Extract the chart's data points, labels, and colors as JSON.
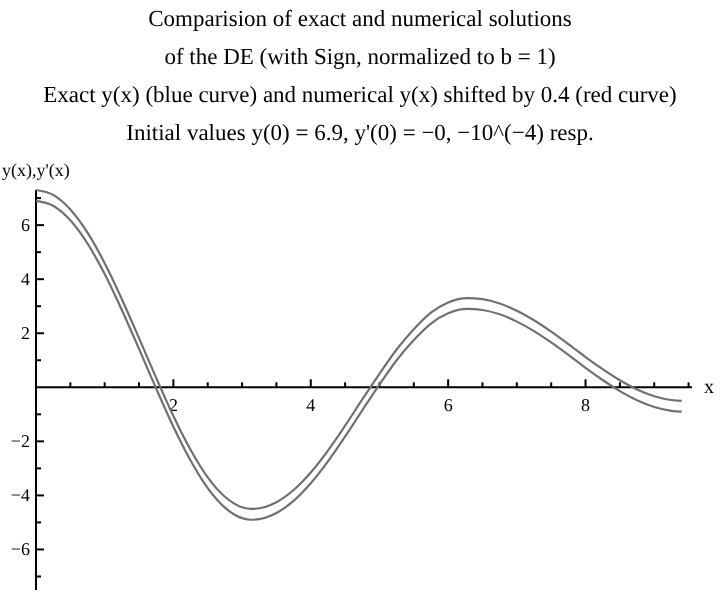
{
  "chart_data": {
    "type": "line",
    "title": "Comparision of exact and numerical solutions\nof the DE (with Sign, normalized to b = 1)",
    "subtitle": "Exact y(x) (blue curve) and numerical y(x) shifted by 0.4 (red curve)\nInitial values y(0) = 6.9, y'(0) = −0, −10^(−4) resp.",
    "xlabel": "x",
    "ylabel": "y(x),y'(x)",
    "x": [
      0,
      0.25,
      0.5,
      0.75,
      1,
      1.25,
      1.5,
      1.75,
      2,
      2.25,
      2.5,
      2.75,
      3,
      3.14,
      3.5,
      3.75,
      4,
      4.25,
      4.5,
      4.75,
      5,
      5.25,
      5.5,
      5.75,
      6,
      6.28,
      6.5,
      6.75,
      7,
      7.25,
      7.5,
      7.75,
      8,
      8.25,
      8.5,
      8.75,
      9,
      9.25,
      9.4
    ],
    "series": [
      {
        "color": "#707070",
        "values": [
          6.9,
          6.72,
          6.18,
          5.32,
          4.19,
          2.86,
          1.42,
          -0.05,
          -1.46,
          -2.71,
          -3.73,
          -4.45,
          -4.84,
          -4.9,
          -4.65,
          -4.2,
          -3.55,
          -2.74,
          -1.82,
          -0.85,
          0.1,
          1.0,
          1.75,
          2.36,
          2.74,
          2.9,
          2.86,
          2.7,
          2.43,
          2.08,
          1.66,
          1.2,
          0.72,
          0.27,
          -0.14,
          -0.48,
          -0.73,
          -0.87,
          -0.9
        ]
      },
      {
        "color": "#707070",
        "values": [
          7.3,
          7.12,
          6.58,
          5.72,
          4.59,
          3.26,
          1.82,
          0.35,
          -1.06,
          -2.31,
          -3.33,
          -4.05,
          -4.44,
          -4.5,
          -4.25,
          -3.8,
          -3.15,
          -2.34,
          -1.42,
          -0.45,
          0.5,
          1.4,
          2.15,
          2.76,
          3.14,
          3.3,
          3.26,
          3.1,
          2.83,
          2.48,
          2.06,
          1.6,
          1.12,
          0.67,
          0.26,
          -0.08,
          -0.33,
          -0.47,
          -0.5
        ]
      }
    ],
    "xlim": [
      0,
      9.55
    ],
    "ylim": [
      -7.5,
      7.3
    ],
    "xticks": [
      {
        "value": 0.5,
        "label": null
      },
      {
        "value": 1,
        "label": null
      },
      {
        "value": 1.5,
        "label": null
      },
      2,
      {
        "value": 2.5,
        "label": null
      },
      {
        "value": 3,
        "label": null
      },
      {
        "value": 3.5,
        "label": null
      },
      4,
      {
        "value": 4.5,
        "label": null
      },
      {
        "value": 5,
        "label": null
      },
      {
        "value": 5.5,
        "label": null
      },
      6,
      {
        "value": 6.5,
        "label": null
      },
      {
        "value": 7,
        "label": null
      },
      {
        "value": 7.5,
        "label": null
      },
      8,
      {
        "value": 8.5,
        "label": null
      },
      {
        "value": 9,
        "label": null
      },
      {
        "value": 9.5,
        "label": null
      }
    ],
    "yticks": [
      {
        "value": -7,
        "label": null
      },
      -6,
      {
        "value": -5,
        "label": null
      },
      -4,
      {
        "value": -3,
        "label": null
      },
      -2,
      {
        "value": -1,
        "label": null
      },
      {
        "value": 1,
        "label": null
      },
      2,
      {
        "value": 3,
        "label": null
      },
      4,
      {
        "value": 5,
        "label": null
      },
      6,
      {
        "value": 7,
        "label": null
      }
    ],
    "grid": false,
    "marker": "none",
    "line_style": "solid"
  }
}
